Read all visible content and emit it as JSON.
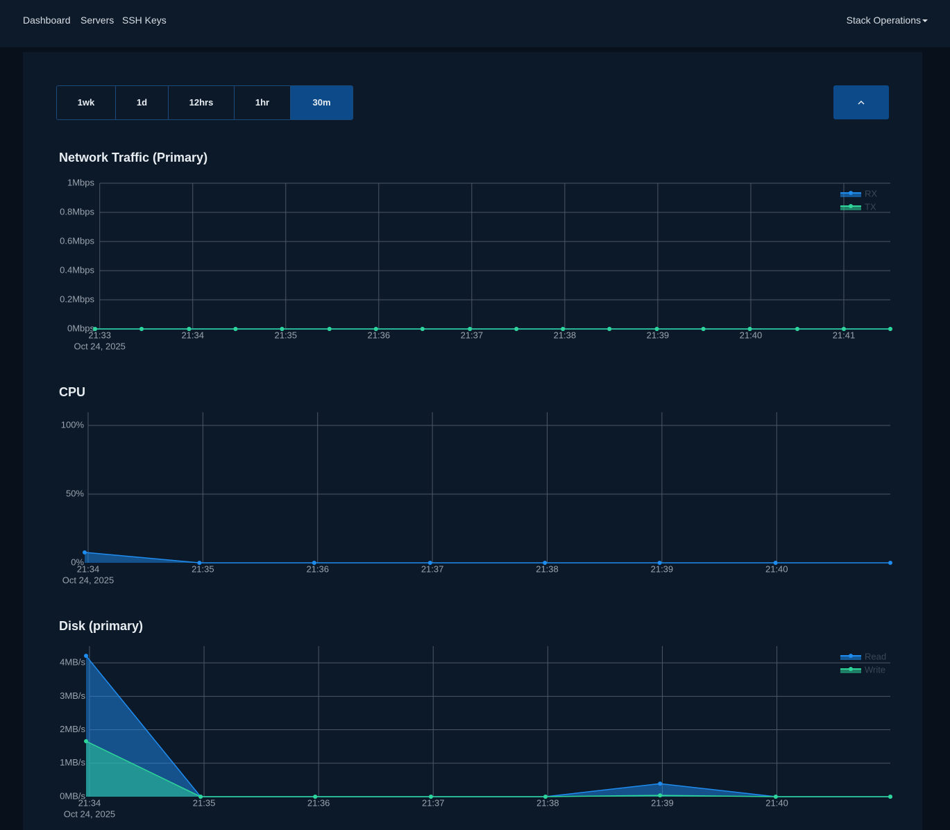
{
  "nav": {
    "links": [
      "Dashboard",
      "Servers",
      "SSH Keys"
    ],
    "menu": "Stack Operations"
  },
  "range_buttons": {
    "labels": [
      "1wk",
      "1d",
      "12hrs",
      "1hr",
      "30m"
    ],
    "active": 4
  },
  "chart_data": [
    {
      "type": "line",
      "title": "Network Traffic (Primary)",
      "x_date": "Oct 24, 2025",
      "x": [
        1292.95,
        1293.45,
        1293.96,
        1294.46,
        1294.96,
        1295.47,
        1295.97,
        1296.47,
        1296.98,
        1297.48,
        1297.98,
        1298.48,
        1298.99,
        1299.49,
        1299.99,
        1300.5,
        1301.0,
        1301.5
      ],
      "xlim": [
        1292.95,
        1301.5
      ],
      "xticks": [
        {
          "value": 1293,
          "label": "21:33"
        },
        {
          "value": 1294,
          "label": "21:34"
        },
        {
          "value": 1295,
          "label": "21:35"
        },
        {
          "value": 1296,
          "label": "21:36"
        },
        {
          "value": 1297,
          "label": "21:37"
        },
        {
          "value": 1298,
          "label": "21:38"
        },
        {
          "value": 1299,
          "label": "21:39"
        },
        {
          "value": 1300,
          "label": "21:40"
        },
        {
          "value": 1301,
          "label": "21:41"
        }
      ],
      "ylim": [
        0,
        1
      ],
      "yticks": [
        {
          "value": 0,
          "label": "0Mbps"
        },
        {
          "value": 0.2,
          "label": "0.2Mbps"
        },
        {
          "value": 0.4,
          "label": "0.4Mbps"
        },
        {
          "value": 0.6,
          "label": "0.6Mbps"
        },
        {
          "value": 0.8,
          "label": "0.8Mbps"
        },
        {
          "value": 1,
          "label": "1Mbps"
        }
      ],
      "grid": true,
      "fill": true,
      "legend": "top right",
      "series": [
        {
          "name": "RX",
          "color": "#1f8cf0",
          "values": [
            0,
            0,
            0,
            0,
            0,
            0,
            0,
            0,
            0,
            0,
            0,
            0,
            0,
            0,
            0,
            0,
            0,
            0
          ]
        },
        {
          "name": "TX",
          "color": "#2ed69a",
          "values": [
            0,
            0,
            0,
            0,
            0,
            0,
            0,
            0,
            0,
            0,
            0,
            0,
            0,
            0,
            0,
            0,
            0,
            0
          ]
        }
      ]
    },
    {
      "type": "line",
      "title": "CPU",
      "x_date": "Oct 24, 2025",
      "x": [
        1293.97,
        1294.97,
        1295.97,
        1296.98,
        1297.98,
        1298.98,
        1299.99,
        1300.99
      ],
      "xlim": [
        1293.97,
        1300.99
      ],
      "xticks": [
        {
          "value": 1294,
          "label": "21:34"
        },
        {
          "value": 1295,
          "label": "21:35"
        },
        {
          "value": 1296,
          "label": "21:36"
        },
        {
          "value": 1297,
          "label": "21:37"
        },
        {
          "value": 1298,
          "label": "21:38"
        },
        {
          "value": 1299,
          "label": "21:39"
        },
        {
          "value": 1300,
          "label": "21:40"
        }
      ],
      "ylim": [
        0,
        109.6
      ],
      "yticks": [
        {
          "value": 0,
          "label": "0%"
        },
        {
          "value": 50,
          "label": "50%"
        },
        {
          "value": 100,
          "label": "100%"
        }
      ],
      "grid": true,
      "fill": true,
      "series": [
        {
          "color": "#1f8cf0",
          "values": [
            7.6,
            0,
            0,
            0,
            0,
            0,
            0,
            0
          ]
        }
      ]
    },
    {
      "type": "line",
      "title": "Disk (primary)",
      "x_date": "Oct 24, 2025",
      "x": [
        1293.97,
        1294.97,
        1295.97,
        1296.98,
        1297.98,
        1298.98,
        1299.99,
        1300.99
      ],
      "xlim": [
        1293.97,
        1300.99
      ],
      "xticks": [
        {
          "value": 1294,
          "label": "21:34"
        },
        {
          "value": 1295,
          "label": "21:35"
        },
        {
          "value": 1296,
          "label": "21:36"
        },
        {
          "value": 1297,
          "label": "21:37"
        },
        {
          "value": 1298,
          "label": "21:38"
        },
        {
          "value": 1299,
          "label": "21:39"
        },
        {
          "value": 1300,
          "label": "21:40"
        }
      ],
      "ylim": [
        0,
        4.5
      ],
      "yticks": [
        {
          "value": 0,
          "label": "0MB/s"
        },
        {
          "value": 1,
          "label": "1MB/s"
        },
        {
          "value": 2,
          "label": "2MB/s"
        },
        {
          "value": 3,
          "label": "3MB/s"
        },
        {
          "value": 4,
          "label": "4MB/s"
        }
      ],
      "grid": true,
      "fill": true,
      "legend": "top right",
      "series": [
        {
          "name": "Read",
          "color": "#1f8cf0",
          "values": [
            4.21,
            0,
            0,
            0,
            0,
            0.39,
            0,
            0
          ]
        },
        {
          "name": "Write",
          "color": "#2ed69a",
          "values": [
            1.66,
            0,
            0,
            0,
            0,
            0.04,
            0,
            0
          ]
        }
      ]
    }
  ]
}
